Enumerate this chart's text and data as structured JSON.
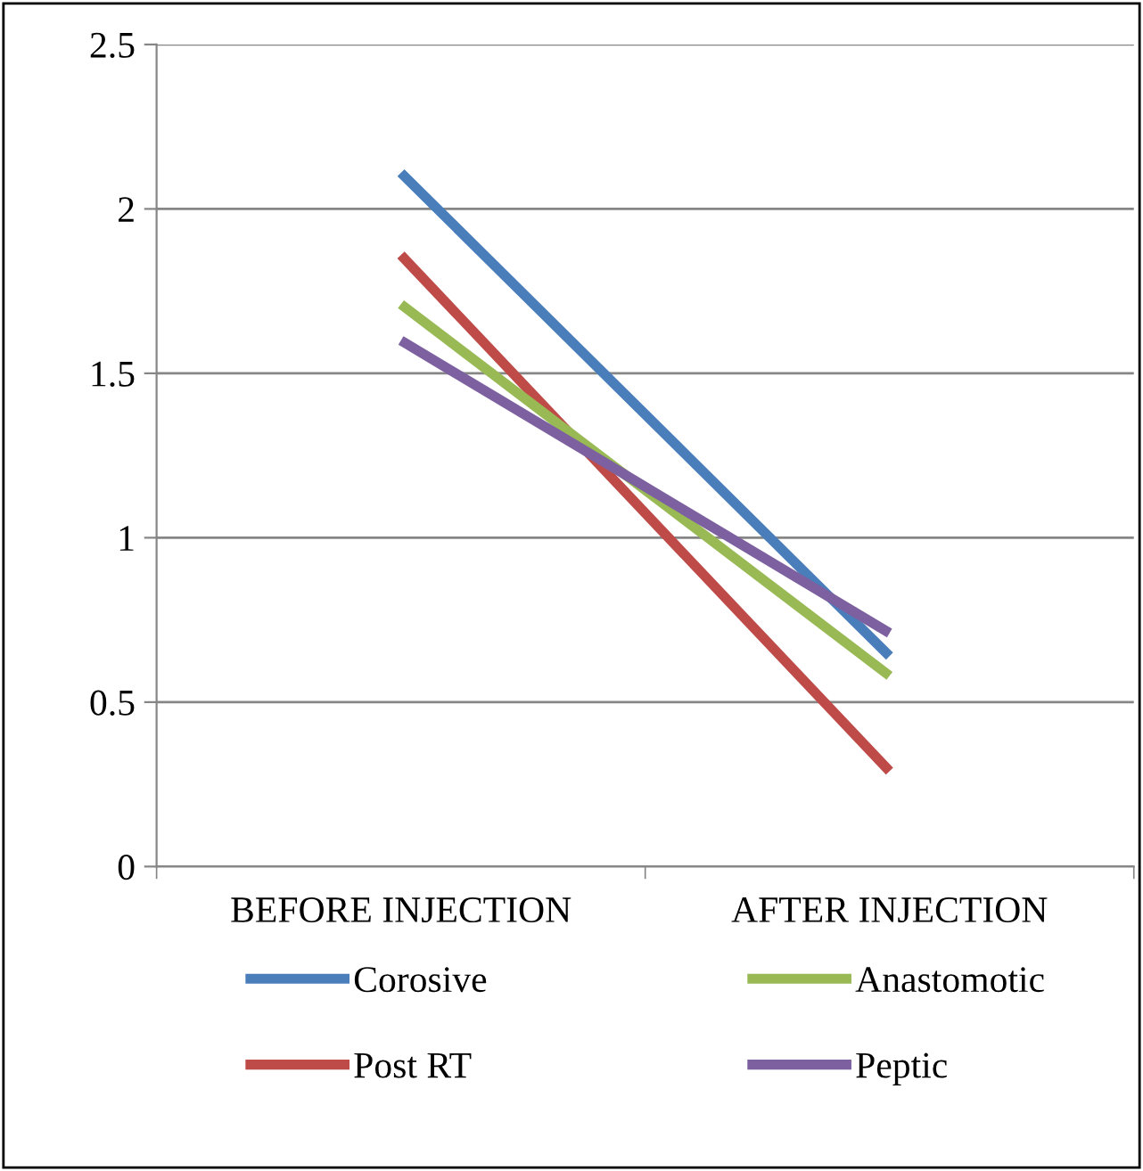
{
  "chart_data": {
    "type": "line",
    "categories": [
      "BEFORE INJECTION",
      "AFTER INJECTION"
    ],
    "series": [
      {
        "name": "Corosive",
        "color": "#4a7ebb",
        "values": [
          2.11,
          0.64
        ]
      },
      {
        "name": "Post RT",
        "color": "#be4b48",
        "values": [
          1.86,
          0.29
        ]
      },
      {
        "name": "Anastomotic",
        "color": "#98b954",
        "values": [
          1.71,
          0.58
        ]
      },
      {
        "name": "Peptic",
        "color": "#7d60a0",
        "values": [
          1.6,
          0.71
        ]
      }
    ],
    "ylim": [
      0,
      2.5
    ],
    "yticks": [
      0,
      0.5,
      1,
      1.5,
      2,
      2.5
    ],
    "grid": "y",
    "legend": "bottom",
    "marker": "none",
    "line_style": "solid"
  }
}
